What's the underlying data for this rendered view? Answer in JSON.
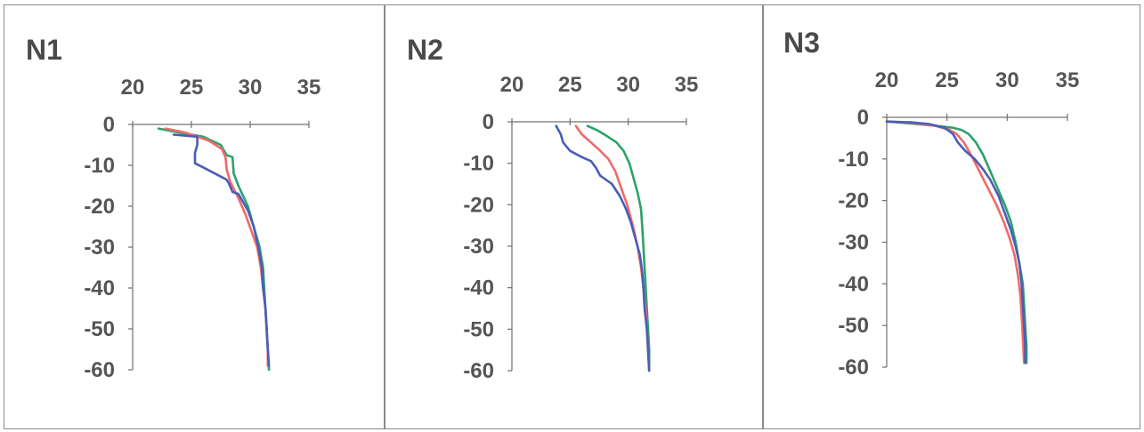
{
  "chart_data": [
    {
      "type": "line",
      "title": "N1",
      "xlabel": "",
      "ylabel": "",
      "xlim": [
        20,
        35
      ],
      "ylim": [
        -60,
        0
      ],
      "x_ticks": [
        "20",
        "25",
        "30",
        "35"
      ],
      "y_ticks": [
        "0",
        "-10",
        "-20",
        "-30",
        "-40",
        "-50",
        "-60"
      ],
      "grid": false,
      "series": [
        {
          "color": "#2ca26a",
          "points": [
            [
              22.2,
              -1
            ],
            [
              24,
              -2
            ],
            [
              26,
              -3
            ],
            [
              27.5,
              -5
            ],
            [
              28,
              -7.5
            ],
            [
              28.5,
              -8
            ],
            [
              28.6,
              -12
            ],
            [
              29,
              -15
            ],
            [
              29.8,
              -20
            ],
            [
              30.3,
              -25
            ],
            [
              30.8,
              -30
            ],
            [
              31.1,
              -35
            ],
            [
              31.2,
              -40
            ],
            [
              31.3,
              -45
            ],
            [
              31.4,
              -50
            ],
            [
              31.5,
              -55
            ],
            [
              31.6,
              -60
            ]
          ]
        },
        {
          "color": "#f06a6a",
          "points": [
            [
              22.8,
              -1
            ],
            [
              24.5,
              -2
            ],
            [
              25.5,
              -3
            ],
            [
              26.5,
              -4
            ],
            [
              27.6,
              -6
            ],
            [
              27.9,
              -8
            ],
            [
              28,
              -11
            ],
            [
              28.3,
              -14
            ],
            [
              29,
              -18
            ],
            [
              29.6,
              -22
            ],
            [
              30.1,
              -26
            ],
            [
              30.6,
              -30
            ],
            [
              30.9,
              -35
            ],
            [
              31.1,
              -40
            ],
            [
              31.3,
              -45
            ],
            [
              31.4,
              -50
            ],
            [
              31.5,
              -55
            ],
            [
              31.5,
              -59
            ]
          ]
        },
        {
          "color": "#4a5db8",
          "points": [
            [
              23.5,
              -2.5
            ],
            [
              25.5,
              -3
            ],
            [
              25.5,
              -5
            ],
            [
              25.3,
              -7
            ],
            [
              25.3,
              -9.5
            ],
            [
              26,
              -10.5
            ],
            [
              27,
              -12
            ],
            [
              28,
              -13.5
            ],
            [
              28.2,
              -14.5
            ],
            [
              28.5,
              -16.5
            ],
            [
              29,
              -17
            ],
            [
              29.4,
              -19
            ],
            [
              29.8,
              -21
            ],
            [
              30.3,
              -25
            ],
            [
              30.7,
              -30
            ],
            [
              31,
              -35
            ],
            [
              31.1,
              -40
            ],
            [
              31.3,
              -45
            ],
            [
              31.4,
              -50
            ],
            [
              31.5,
              -55
            ],
            [
              31.6,
              -59
            ]
          ]
        }
      ]
    },
    {
      "type": "line",
      "title": "N2",
      "xlabel": "",
      "ylabel": "",
      "xlim": [
        20,
        35
      ],
      "ylim": [
        -60,
        0
      ],
      "x_ticks": [
        "20",
        "25",
        "30",
        "35"
      ],
      "y_ticks": [
        "0",
        "-10",
        "-20",
        "-30",
        "-40",
        "-50",
        "-60"
      ],
      "grid": false,
      "series": [
        {
          "color": "#2ca26a",
          "points": [
            [
              26.5,
              -1
            ],
            [
              27.3,
              -2
            ],
            [
              28.2,
              -3.5
            ],
            [
              29,
              -5
            ],
            [
              29.6,
              -7
            ],
            [
              30.1,
              -10
            ],
            [
              30.4,
              -13
            ],
            [
              30.8,
              -17
            ],
            [
              31.1,
              -21
            ],
            [
              31.2,
              -25
            ],
            [
              31.3,
              -30
            ],
            [
              31.4,
              -35
            ],
            [
              31.5,
              -40
            ],
            [
              31.6,
              -45
            ],
            [
              31.7,
              -50
            ],
            [
              31.8,
              -55
            ],
            [
              31.8,
              -60
            ]
          ]
        },
        {
          "color": "#f06a6a",
          "points": [
            [
              25.5,
              -1
            ],
            [
              26,
              -3
            ],
            [
              26.8,
              -5
            ],
            [
              27.6,
              -7
            ],
            [
              28.3,
              -9
            ],
            [
              28.9,
              -12
            ],
            [
              29.4,
              -16
            ],
            [
              29.9,
              -20
            ],
            [
              30.4,
              -25
            ],
            [
              30.8,
              -30
            ],
            [
              31.1,
              -35
            ],
            [
              31.3,
              -40
            ],
            [
              31.5,
              -45
            ],
            [
              31.6,
              -50
            ],
            [
              31.7,
              -55
            ],
            [
              31.8,
              -60
            ]
          ]
        },
        {
          "color": "#4a5db8",
          "points": [
            [
              23.8,
              -1
            ],
            [
              24.2,
              -3
            ],
            [
              24.4,
              -5
            ],
            [
              25,
              -7
            ],
            [
              26,
              -8.5
            ],
            [
              26.8,
              -9.5
            ],
            [
              27.2,
              -11
            ],
            [
              27.6,
              -13
            ],
            [
              28.6,
              -15
            ],
            [
              29.3,
              -18
            ],
            [
              29.8,
              -21
            ],
            [
              30.2,
              -24
            ],
            [
              30.6,
              -28
            ],
            [
              31,
              -32
            ],
            [
              31.2,
              -36
            ],
            [
              31.3,
              -40
            ],
            [
              31.4,
              -45
            ],
            [
              31.6,
              -50
            ],
            [
              31.7,
              -55
            ],
            [
              31.8,
              -60
            ]
          ]
        }
      ]
    },
    {
      "type": "line",
      "title": "N3",
      "xlabel": "",
      "ylabel": "",
      "xlim": [
        20,
        35
      ],
      "ylim": [
        -60,
        0
      ],
      "x_ticks": [
        "20",
        "25",
        "30",
        "35"
      ],
      "y_ticks": [
        "0",
        "-10",
        "-20",
        "-30",
        "-40",
        "-50",
        "-60"
      ],
      "grid": false,
      "series": [
        {
          "color": "#2ca26a",
          "points": [
            [
              20,
              -1
            ],
            [
              22,
              -1.5
            ],
            [
              24,
              -2
            ],
            [
              25.5,
              -2.5
            ],
            [
              26.2,
              -3
            ],
            [
              26.8,
              -4
            ],
            [
              27.4,
              -6
            ],
            [
              28,
              -9
            ],
            [
              28.6,
              -13
            ],
            [
              29.2,
              -17
            ],
            [
              29.8,
              -21
            ],
            [
              30.3,
              -25
            ],
            [
              30.7,
              -30
            ],
            [
              31,
              -35
            ],
            [
              31.3,
              -40
            ],
            [
              31.4,
              -45
            ],
            [
              31.5,
              -50
            ],
            [
              31.6,
              -55
            ],
            [
              31.6,
              -59
            ]
          ]
        },
        {
          "color": "#f06a6a",
          "points": [
            [
              20,
              -1
            ],
            [
              22,
              -1.3
            ],
            [
              24,
              -2
            ],
            [
              25.2,
              -3
            ],
            [
              25.8,
              -4
            ],
            [
              26.4,
              -6
            ],
            [
              27,
              -9
            ],
            [
              27.7,
              -13
            ],
            [
              28.4,
              -17
            ],
            [
              29.1,
              -21
            ],
            [
              29.7,
              -25
            ],
            [
              30.2,
              -29
            ],
            [
              30.6,
              -33
            ],
            [
              30.9,
              -38
            ],
            [
              31.1,
              -43
            ],
            [
              31.2,
              -48
            ],
            [
              31.3,
              -53
            ],
            [
              31.4,
              -59
            ]
          ]
        },
        {
          "color": "#4a5db8",
          "points": [
            [
              20,
              -1
            ],
            [
              22,
              -1.2
            ],
            [
              23.5,
              -1.6
            ],
            [
              24.8,
              -2.5
            ],
            [
              25.5,
              -4
            ],
            [
              25.9,
              -6
            ],
            [
              26.5,
              -8
            ],
            [
              27.3,
              -10
            ],
            [
              28,
              -12.5
            ],
            [
              28.6,
              -15
            ],
            [
              29.3,
              -19
            ],
            [
              29.8,
              -23
            ],
            [
              30.3,
              -27
            ],
            [
              30.7,
              -31
            ],
            [
              31,
              -35
            ],
            [
              31.2,
              -40
            ],
            [
              31.3,
              -45
            ],
            [
              31.4,
              -50
            ],
            [
              31.5,
              -55
            ],
            [
              31.5,
              -59
            ]
          ]
        }
      ]
    }
  ]
}
